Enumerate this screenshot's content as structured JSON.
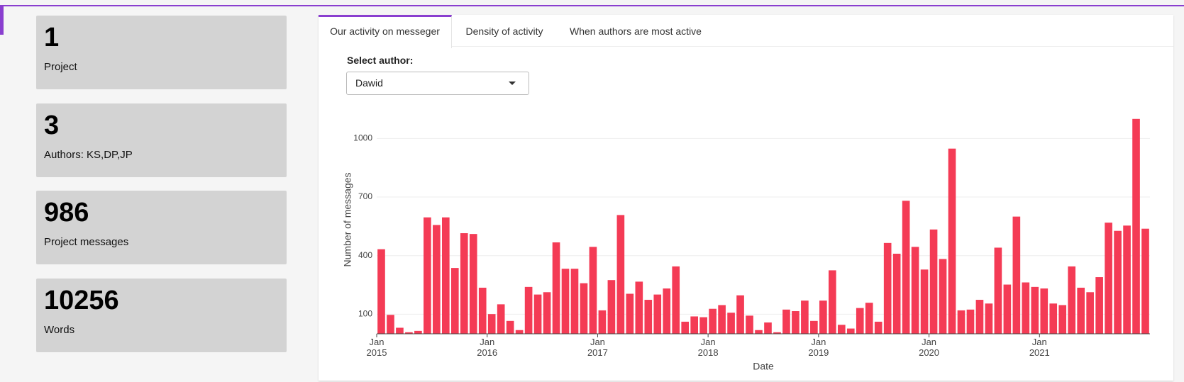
{
  "cards": [
    {
      "value": 1,
      "label": "Project"
    },
    {
      "value": 3,
      "label": "Authors: KS,DP,JP"
    },
    {
      "value": 986,
      "label": "Project messages"
    },
    {
      "value": 10256,
      "label": "Words"
    }
  ],
  "tabs": [
    "Our activity on messeger",
    "Density of activity",
    "When authors are most active"
  ],
  "select": {
    "label": "Select author:",
    "value": "Dawid"
  },
  "chart_data": {
    "type": "bar",
    "xlabel": "Date",
    "ylabel": "Number of messages",
    "color": "#f43b55",
    "grid": true,
    "x": [
      "2015-01",
      "2015-02",
      "2015-03",
      "2015-04",
      "2015-05",
      "2015-06",
      "2015-07",
      "2015-08",
      "2015-09",
      "2015-10",
      "2015-11",
      "2015-12",
      "2016-01",
      "2016-02",
      "2016-03",
      "2016-04",
      "2016-05",
      "2016-06",
      "2016-07",
      "2016-08",
      "2016-09",
      "2016-10",
      "2016-11",
      "2016-12",
      "2017-01",
      "2017-02",
      "2017-03",
      "2017-04",
      "2017-05",
      "2017-06",
      "2017-07",
      "2017-08",
      "2017-09",
      "2017-10",
      "2017-11",
      "2017-12",
      "2018-01",
      "2018-02",
      "2018-03",
      "2018-04",
      "2018-05",
      "2018-06",
      "2018-07",
      "2018-08",
      "2018-09",
      "2018-10",
      "2018-11",
      "2018-12",
      "2019-01",
      "2019-02",
      "2019-03",
      "2019-04",
      "2019-05",
      "2019-06",
      "2019-07",
      "2019-08",
      "2019-09",
      "2019-10",
      "2019-11",
      "2019-12",
      "2020-01",
      "2020-02",
      "2020-03",
      "2020-04",
      "2020-05",
      "2020-06",
      "2020-07",
      "2020-08",
      "2020-09",
      "2020-10",
      "2020-11",
      "2020-12",
      "2021-01",
      "2021-02",
      "2021-03",
      "2021-04",
      "2021-05",
      "2021-06",
      "2021-07",
      "2021-08",
      "2021-09",
      "2021-10",
      "2021-11",
      "2021-12"
    ],
    "values": [
      433,
      97,
      31,
      8,
      15,
      596,
      557,
      596,
      337,
      515,
      511,
      236,
      101,
      151,
      66,
      19,
      240,
      201,
      213,
      468,
      333,
      333,
      259,
      445,
      120,
      275,
      608,
      205,
      267,
      174,
      201,
      232,
      345,
      62,
      89,
      85,
      128,
      147,
      108,
      197,
      93,
      19,
      58,
      8,
      124,
      116,
      170,
      66,
      170,
      325,
      46,
      27,
      132,
      159,
      62,
      465,
      410,
      681,
      445,
      329,
      534,
      383,
      948,
      120,
      124,
      174,
      155,
      441,
      252,
      600,
      263,
      240,
      232,
      155,
      147,
      345,
      236,
      213,
      290,
      569,
      527,
      554,
      1100,
      538
    ],
    "ylim": [
      0,
      1150
    ],
    "yticks": [
      100,
      400,
      700,
      1000
    ],
    "xticks": [
      {
        "value": "2015-01",
        "label": "Jan 2015"
      },
      {
        "value": "2016-01",
        "label": "Jan 2016"
      },
      {
        "value": "2017-01",
        "label": "Jan 2017"
      },
      {
        "value": "2018-01",
        "label": "Jan 2018"
      },
      {
        "value": "2019-01",
        "label": "Jan 2019"
      },
      {
        "value": "2020-01",
        "label": "Jan 2020"
      },
      {
        "value": "2021-01",
        "label": "Jan 2021"
      }
    ]
  }
}
